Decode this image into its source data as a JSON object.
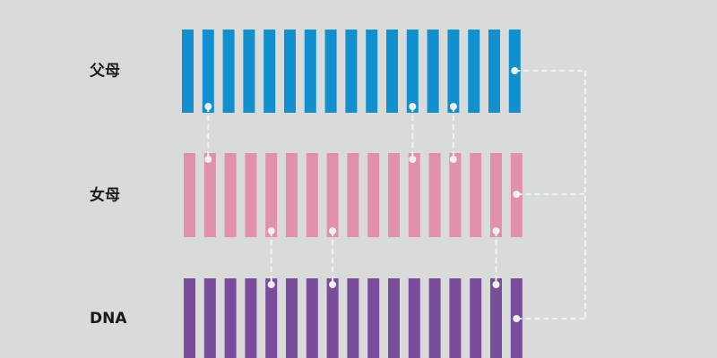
{
  "rows": [
    {
      "label": "父母",
      "color": "#1190cf"
    },
    {
      "label": "女母",
      "color": "#e390aa"
    },
    {
      "label": "DNA",
      "color": "#7a4c9c"
    }
  ],
  "bar_count": 17,
  "connector_color": "#f2f2f2",
  "links_row1_row2": [
    1,
    11,
    13
  ],
  "links_row2_row3": [
    4,
    7,
    15
  ],
  "bracket_links_bar": 16
}
